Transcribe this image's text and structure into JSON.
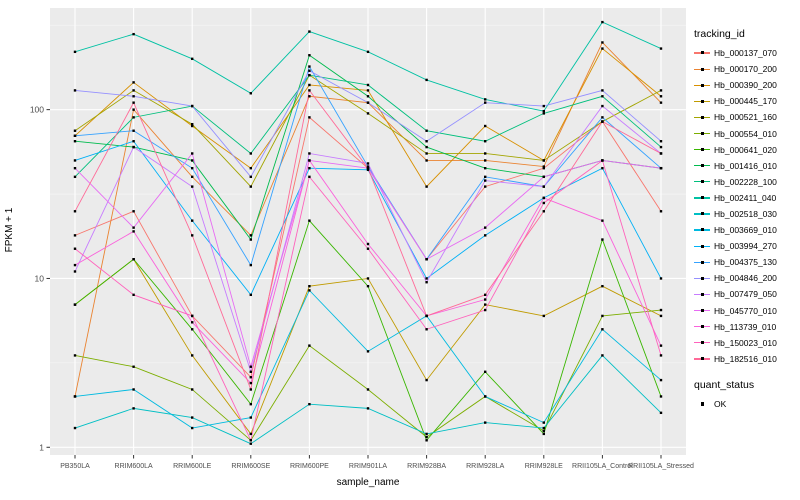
{
  "figure": {
    "background": "#FFFFFF",
    "panel_background": "#EBEBEB",
    "grid_major_color": "#FFFFFF",
    "grid_minor_color": "#F7F7F7",
    "tick_label_color": "#4D4D4D",
    "axis_tick_color": "#333333"
  },
  "chart_data": {
    "type": "line",
    "title": "",
    "xlabel": "sample_name",
    "ylabel": "FPKM + 1",
    "y_scale": "log10",
    "ylim": [
      0.9,
      400
    ],
    "y_ticks": [
      1,
      10,
      100
    ],
    "y_minor_ticks": [
      3.1623,
      31.623,
      316.23
    ],
    "grid": true,
    "legend_position": "right",
    "point_color": "#000000",
    "categories": [
      "PB350LA",
      "RRIM600LA",
      "RRIM600LE",
      "RRIM600SE",
      "RRIM600PE",
      "RRIM901LA",
      "RRIM928BA",
      "RRIM928LA",
      "RRIM928LE",
      "RRII105LA_Control",
      "RRII105LA_Stressed"
    ],
    "series": [
      {
        "name": "Hb_000137_070",
        "color": "#F8766D",
        "values": [
          18,
          25,
          6,
          2.6,
          90,
          45,
          13,
          35,
          45,
          85,
          25
        ]
      },
      {
        "name": "Hb_000170_200",
        "color": "#EA8331",
        "values": [
          2.0,
          100,
          40,
          18,
          120,
          110,
          50,
          50,
          46,
          250,
          110
        ]
      },
      {
        "name": "Hb_000390_200",
        "color": "#D89000",
        "values": [
          70,
          145,
          80,
          45,
          140,
          130,
          35,
          80,
          50,
          230,
          120
        ]
      },
      {
        "name": "Hb_000445_170",
        "color": "#C09B00",
        "values": [
          7,
          13,
          3.5,
          1.2,
          9,
          10,
          2.5,
          7,
          6,
          9,
          6
        ]
      },
      {
        "name": "Hb_000521_160",
        "color": "#A3A500",
        "values": [
          75,
          130,
          82,
          35,
          160,
          95,
          55,
          55,
          50,
          85,
          130
        ]
      },
      {
        "name": "Hb_000554_010",
        "color": "#7CAE00",
        "values": [
          3.5,
          3.0,
          2.2,
          1.1,
          4.0,
          2.2,
          1.15,
          2.0,
          1.25,
          6.0,
          6.5
        ]
      },
      {
        "name": "Hb_000641_020",
        "color": "#39B600",
        "values": [
          7,
          13,
          5,
          1.8,
          22,
          9,
          1.1,
          2.8,
          1.2,
          17,
          2.0
        ]
      },
      {
        "name": "Hb_001416_010",
        "color": "#00BB4E",
        "values": [
          65,
          60,
          50,
          17,
          210,
          120,
          60,
          45,
          40,
          50,
          45
        ]
      },
      {
        "name": "Hb_002228_100",
        "color": "#00BF7D",
        "values": [
          40,
          90,
          105,
          55,
          160,
          140,
          75,
          65,
          95,
          120,
          60
        ]
      },
      {
        "name": "Hb_002411_040",
        "color": "#00C1A3",
        "values": [
          220,
          280,
          200,
          125,
          290,
          220,
          150,
          115,
          98,
          330,
          230
        ]
      },
      {
        "name": "Hb_002518_030",
        "color": "#00BFC4",
        "values": [
          1.3,
          1.7,
          1.5,
          1.05,
          1.8,
          1.7,
          1.2,
          1.4,
          1.3,
          3.5,
          1.6
        ]
      },
      {
        "name": "Hb_003669_010",
        "color": "#00BAE0",
        "values": [
          2.0,
          2.2,
          1.3,
          1.5,
          8.5,
          3.7,
          6.0,
          2.0,
          1.4,
          5.0,
          2.5
        ]
      },
      {
        "name": "Hb_003994_270",
        "color": "#00B0F6",
        "values": [
          50,
          65,
          22,
          8,
          45,
          44,
          10,
          18,
          30,
          45,
          10
        ]
      },
      {
        "name": "Hb_004375_130",
        "color": "#35A2FF",
        "values": [
          70,
          75,
          45,
          12,
          180,
          46,
          13,
          40,
          35,
          90,
          45
        ]
      },
      {
        "name": "Hb_004846_200",
        "color": "#9590FF",
        "values": [
          130,
          120,
          105,
          40,
          170,
          110,
          65,
          110,
          105,
          130,
          65
        ]
      },
      {
        "name": "Hb_007479_050",
        "color": "#C77CFF",
        "values": [
          11,
          60,
          35,
          2.8,
          55,
          48,
          9.5,
          38,
          35,
          105,
          55
        ]
      },
      {
        "name": "Hb_045770_010",
        "color": "#E76BF3",
        "values": [
          45,
          20,
          55,
          3.0,
          50,
          45,
          13,
          20,
          40,
          50,
          45
        ]
      },
      {
        "name": "Hb_113739_010",
        "color": "#FA62DB",
        "values": [
          12,
          19,
          5.5,
          2.4,
          50,
          16,
          6.0,
          7.5,
          30,
          22,
          4.0
        ]
      },
      {
        "name": "Hb_150023_010",
        "color": "#FF62BC",
        "values": [
          15,
          8,
          6,
          1.1,
          40,
          15,
          5.0,
          6.5,
          28,
          50,
          3.5
        ]
      },
      {
        "name": "Hb_182516_010",
        "color": "#FF6A98",
        "values": [
          25,
          110,
          18,
          2.2,
          130,
          45,
          6.0,
          8.0,
          25,
          85,
          55
        ]
      }
    ],
    "legend": {
      "tracking_title": "tracking_id",
      "quant_title": "quant_status",
      "quant_items": [
        {
          "label": "OK"
        }
      ]
    }
  }
}
